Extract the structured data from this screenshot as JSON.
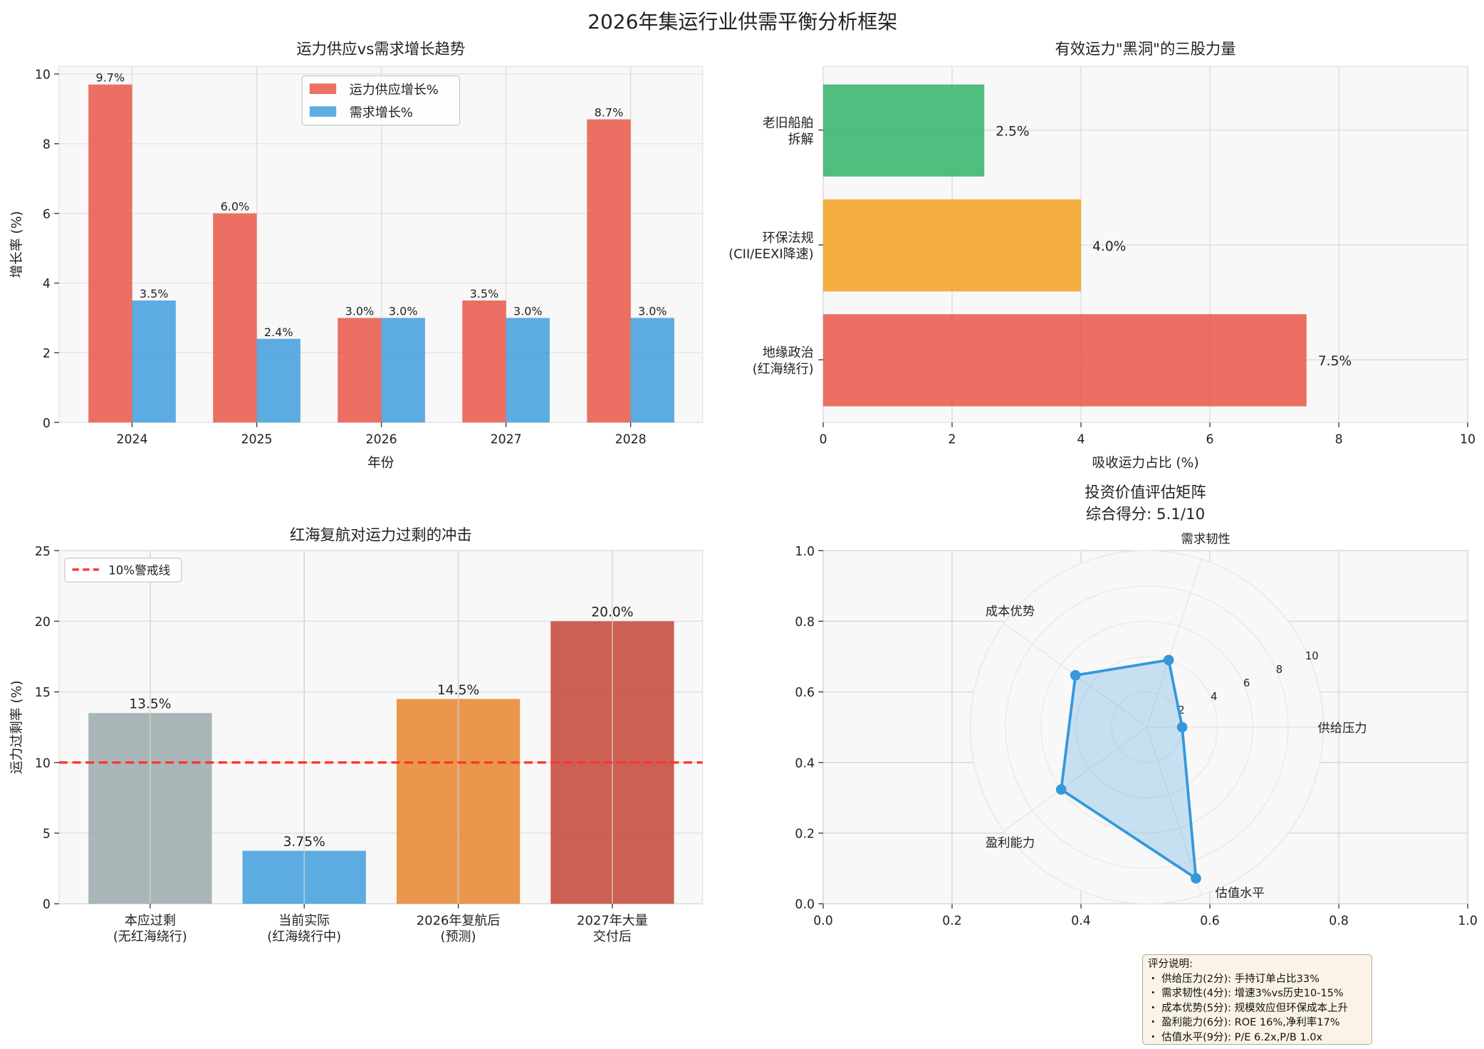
{
  "suptitle": "2026年集运行业供需平衡分析框架",
  "chart_data": [
    {
      "type": "bar",
      "title": "运力供应vs需求增长趋势",
      "xlabel": "年份",
      "ylabel": "增长率 (%)",
      "categories": [
        "2024",
        "2025",
        "2026",
        "2027",
        "2028"
      ],
      "series": [
        {
          "name": "运力供应增长%",
          "values": [
            9.7,
            6.0,
            3.0,
            3.5,
            8.7
          ],
          "color": "#e74c3c"
        },
        {
          "name": "需求增长%",
          "values": [
            3.5,
            2.4,
            3.0,
            3.0,
            3.0
          ],
          "color": "#3498db"
        }
      ],
      "data_labels": [
        [
          "9.7%",
          "6.0%",
          "3.0%",
          "3.5%",
          "8.7%"
        ],
        [
          "3.5%",
          "2.4%",
          "3.0%",
          "3.0%",
          "3.0%"
        ]
      ],
      "ylim": [
        0,
        10.2
      ],
      "yticks": [
        "0",
        "2",
        "4",
        "6",
        "8",
        "10"
      ],
      "grid": true,
      "legend": "top-center"
    },
    {
      "type": "bar",
      "orientation": "horizontal",
      "title": "有效运力\"黑洞\"的三股力量",
      "xlabel": "吸收运力占比 (%)",
      "categories": [
        [
          "地缘政治",
          "(红海绕行)"
        ],
        [
          "环保法规",
          "(CII/EEXI降速)"
        ],
        [
          "老旧船舶",
          "拆解"
        ]
      ],
      "values": [
        7.5,
        4.0,
        2.5
      ],
      "data_labels": [
        "7.5%",
        "4.0%",
        "2.5%"
      ],
      "colors": [
        "#e74c3c",
        "#f39c12",
        "#27ae60"
      ],
      "xlim": [
        0,
        10
      ],
      "xticks": [
        "0",
        "2",
        "4",
        "6",
        "8",
        "10"
      ],
      "grid": true
    },
    {
      "type": "bar",
      "title": "红海复航对运力过剩的冲击",
      "ylabel": "运力过剩率 (%)",
      "categories": [
        [
          "本应过剩",
          "(无红海绕行)"
        ],
        [
          "当前实际",
          "(红海绕行中)"
        ],
        [
          "2026年复航后",
          "(预测)"
        ],
        [
          "2027年大量",
          "交付后"
        ]
      ],
      "values": [
        13.5,
        3.75,
        14.5,
        20.0
      ],
      "data_labels": [
        "13.5%",
        "3.75%",
        "14.5%",
        "20.0%"
      ],
      "colors": [
        "#95a5a6",
        "#3498db",
        "#e67e22",
        "#c0392b"
      ],
      "ylim": [
        0,
        25
      ],
      "yticks": [
        "0",
        "5",
        "10",
        "15",
        "20",
        "25"
      ],
      "hline": {
        "value": 10,
        "label": "10%警戒线",
        "color": "#ff3333"
      },
      "grid": true,
      "legend": "top-left"
    },
    {
      "type": "radar",
      "title": "投资价值评估矩阵",
      "subtitle": "综合得分: 5.1/10",
      "axes": [
        "供给压力",
        "需求韧性",
        "成本优势",
        "盈利能力",
        "估值水平"
      ],
      "values": [
        2,
        4,
        5,
        6,
        9
      ],
      "rticks": [
        "2",
        "4",
        "6",
        "8",
        "10"
      ],
      "rlim": [
        0,
        10
      ],
      "color": "#3498db",
      "background_xticks": [
        "0.0",
        "0.2",
        "0.4",
        "0.6",
        "0.8",
        "1.0"
      ],
      "background_yticks": [
        "0.0",
        "0.2",
        "0.4",
        "0.6",
        "0.8",
        "1.0"
      ]
    }
  ],
  "note": {
    "title": "评分说明:",
    "lines": [
      "・ 供给压力(2分): 手持订单占比33%",
      "・ 需求韧性(4分): 增速3%vs历史10-15%",
      "・ 成本优势(5分): 规模效应但环保成本上升",
      "・ 盈利能力(6分): ROE 16%,净利率17%",
      "・ 估值水平(9分): P/E 6.2x,P/B 1.0x"
    ]
  }
}
